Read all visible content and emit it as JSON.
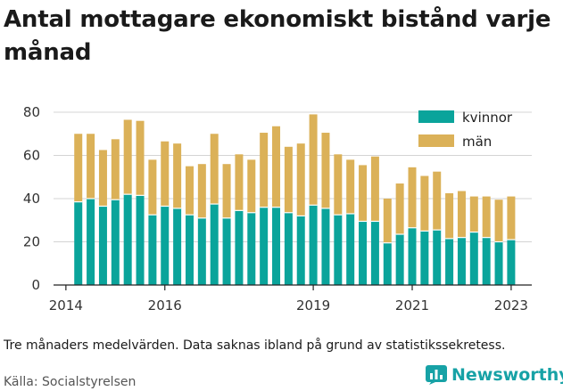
{
  "title": "Antal mottagare ekonomiskt bistånd varje månad",
  "note": "Tre månaders medelvärden. Data saknas ibland på grund av statistikssekretess.",
  "source": "Källa: Socialstyrelsen",
  "brand": {
    "name": "Newsworthy",
    "icon": "bar-chart-logo-icon"
  },
  "colors": {
    "kvinnor": "#0aa49b",
    "man": "#dbb158",
    "axis": "#222222",
    "grid": "#d4d4d4"
  },
  "chart_data": {
    "type": "bar",
    "stacked": true,
    "grid": true,
    "legend_position": "top-right",
    "ylim": [
      0,
      80
    ],
    "y_ticks": [
      0,
      20,
      40,
      60,
      80
    ],
    "x_ticks": [
      "2014",
      "2016",
      "2019",
      "2021",
      "2023"
    ],
    "x_range": [
      "2013-10",
      "2023-06"
    ],
    "x": [
      "2014-04",
      "2014-07",
      "2014-10",
      "2015-01",
      "2015-04",
      "2015-07",
      "2015-10",
      "2016-01",
      "2016-04",
      "2016-07",
      "2016-10",
      "2017-01",
      "2017-04",
      "2017-07",
      "2017-10",
      "2018-01",
      "2018-04",
      "2018-07",
      "2018-10",
      "2019-01",
      "2019-04",
      "2019-07",
      "2019-10",
      "2020-01",
      "2020-04",
      "2020-07",
      "2020-10",
      "2021-01",
      "2021-04",
      "2021-07",
      "2021-10",
      "2022-01",
      "2022-04",
      "2022-07",
      "2022-10",
      "2023-01"
    ],
    "series": [
      {
        "name": "kvinnor",
        "values": [
          38.5,
          40,
          36.5,
          39.5,
          42,
          41.5,
          32.5,
          36.5,
          35.5,
          32.5,
          31,
          37.5,
          31,
          34.5,
          33.5,
          36,
          36,
          33.5,
          32,
          37,
          35.5,
          32.5,
          33,
          29.5,
          29.5,
          19.5,
          23.5,
          26.5,
          25,
          25.5,
          21.5,
          22,
          24.5,
          22,
          20,
          21
        ]
      },
      {
        "name": "män",
        "values": [
          31.5,
          30,
          26,
          28,
          34.5,
          34.5,
          25.5,
          30,
          30,
          22.5,
          25,
          32.5,
          25,
          26,
          24.5,
          34.5,
          37.5,
          30.5,
          33.5,
          42,
          35,
          28,
          25,
          26,
          30,
          20.5,
          23.5,
          28,
          25.5,
          27,
          21,
          21.5,
          16.5,
          19,
          19.5,
          20
        ]
      }
    ]
  }
}
